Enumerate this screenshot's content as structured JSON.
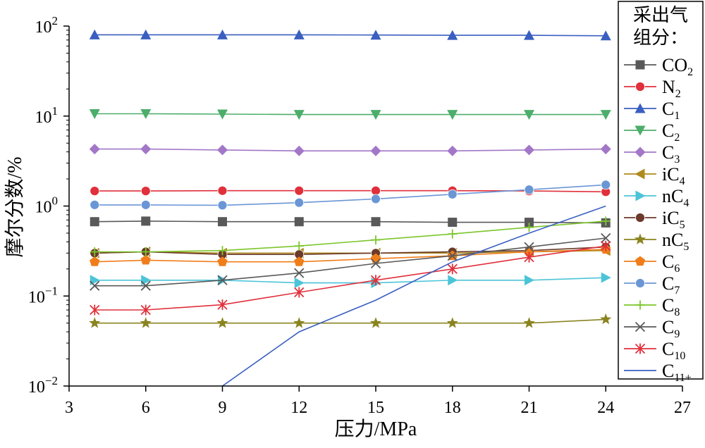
{
  "chart_data": {
    "type": "line",
    "title": "",
    "xlabel": "压力/MPa",
    "ylabel": "摩尔分数/%",
    "x_ticks": [
      "3",
      "6",
      "9",
      "12",
      "15",
      "18",
      "21",
      "24",
      "27"
    ],
    "xlim": [
      3,
      27
    ],
    "y_scale": "log",
    "ylim": [
      0.01,
      100
    ],
    "y_ticks": [
      {
        "base": "10",
        "exp": "−2"
      },
      {
        "base": "10",
        "exp": "−1"
      },
      {
        "base": "10",
        "exp": "0"
      },
      {
        "base": "10",
        "exp": "1"
      },
      {
        "base": "10",
        "exp": "2"
      }
    ],
    "legend": {
      "title_line1": "采出气",
      "title_line2": "组分：",
      "placement": "right"
    },
    "x": [
      4,
      6,
      9,
      12,
      15,
      18,
      21,
      24
    ],
    "series": [
      {
        "name": "CO2",
        "label_base": "CO",
        "label_sub": "2",
        "color": "#595959",
        "marker": "square",
        "values": [
          0.67,
          0.68,
          0.67,
          0.67,
          0.67,
          0.66,
          0.66,
          0.65
        ]
      },
      {
        "name": "N2",
        "label_base": "N",
        "label_sub": "2",
        "color": "#e0303b",
        "marker": "circle",
        "values": [
          1.47,
          1.47,
          1.48,
          1.48,
          1.48,
          1.48,
          1.47,
          1.44
        ]
      },
      {
        "name": "C1",
        "label_base": "C",
        "label_sub": "1",
        "color": "#3a5fc0",
        "marker": "triangle-up",
        "values": [
          80,
          80,
          80,
          80,
          79.5,
          79,
          79,
          78
        ]
      },
      {
        "name": "C2",
        "label_base": "C",
        "label_sub": "2",
        "color": "#4cae6a",
        "marker": "triangle-down",
        "values": [
          10.6,
          10.6,
          10.5,
          10.4,
          10.4,
          10.4,
          10.4,
          10.4
        ]
      },
      {
        "name": "C3",
        "label_base": "C",
        "label_sub": "3",
        "color": "#a277c7",
        "marker": "diamond",
        "values": [
          4.3,
          4.3,
          4.2,
          4.1,
          4.1,
          4.1,
          4.2,
          4.3
        ]
      },
      {
        "name": "iC4",
        "label_base": "iC",
        "label_sub": "4",
        "color": "#b08a1e",
        "marker": "triangle-left",
        "values": [
          0.3,
          0.31,
          0.3,
          0.3,
          0.3,
          0.3,
          0.31,
          0.32
        ]
      },
      {
        "name": "nC4",
        "label_base": "nC",
        "label_sub": "4",
        "color": "#4cc4d8",
        "marker": "triangle-right",
        "values": [
          0.15,
          0.15,
          0.15,
          0.14,
          0.14,
          0.15,
          0.15,
          0.16
        ]
      },
      {
        "name": "iC5",
        "label_base": "iC",
        "label_sub": "5",
        "color": "#6b3a2a",
        "marker": "circle",
        "values": [
          0.3,
          0.31,
          0.29,
          0.29,
          0.3,
          0.31,
          0.32,
          0.35
        ]
      },
      {
        "name": "nC5",
        "label_base": "nC",
        "label_sub": "5",
        "color": "#8a8420",
        "marker": "star",
        "values": [
          0.05,
          0.05,
          0.05,
          0.05,
          0.05,
          0.05,
          0.05,
          0.055
        ]
      },
      {
        "name": "C6",
        "label_base": "C",
        "label_sub": "6",
        "color": "#f07d1a",
        "marker": "pentagon",
        "values": [
          0.24,
          0.25,
          0.24,
          0.24,
          0.26,
          0.28,
          0.31,
          0.33
        ]
      },
      {
        "name": "C7",
        "label_base": "C",
        "label_sub": "7",
        "color": "#6b96d6",
        "marker": "circle",
        "values": [
          1.03,
          1.03,
          1.02,
          1.09,
          1.2,
          1.35,
          1.52,
          1.72
        ]
      },
      {
        "name": "C8",
        "label_base": "C",
        "label_sub": "8",
        "color": "#7bc62a",
        "marker": "plus",
        "values": [
          0.31,
          0.31,
          0.32,
          0.36,
          0.42,
          0.49,
          0.58,
          0.68
        ]
      },
      {
        "name": "C9",
        "label_base": "C",
        "label_sub": "9",
        "color": "#595959",
        "marker": "x",
        "values": [
          0.13,
          0.13,
          0.15,
          0.18,
          0.23,
          0.28,
          0.35,
          0.44
        ]
      },
      {
        "name": "C10",
        "label_base": "C",
        "label_sub": "10",
        "color": "#e0303b",
        "marker": "asterisk",
        "values": [
          0.07,
          0.07,
          0.08,
          0.11,
          0.15,
          0.2,
          0.27,
          0.36
        ]
      },
      {
        "name": "C11+",
        "label_base": "C",
        "label_sub": "11+",
        "color": "#3a5fc0",
        "marker": "none",
        "values": [
          null,
          null,
          0.01,
          0.04,
          0.09,
          0.24,
          0.5,
          1.0
        ]
      }
    ]
  }
}
